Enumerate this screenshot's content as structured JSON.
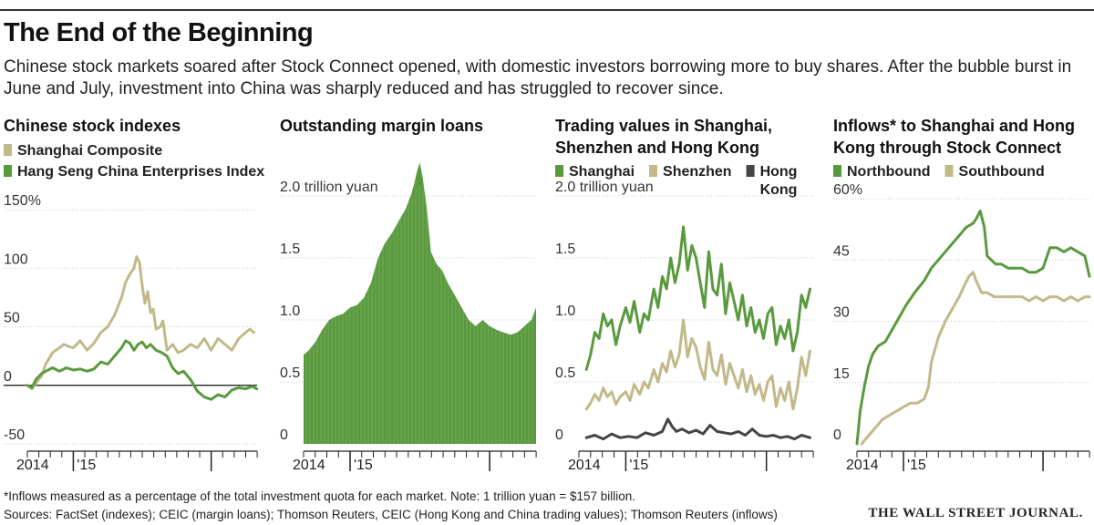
{
  "headline": "The End of the Beginning",
  "dek": "Chinese stock markets soared after Stock Connect opened, with domestic investors borrowing more to buy shares. After the bubble burst in June and July, investment into China was sharply reduced and has struggled to recover since.",
  "footnote": "*Inflows measured as a percentage of the total investment quota for each market. Note: 1 trillion yuan = $157 billion.",
  "sources": "Sources: FactSet (indexes); CEIC (margin loans); Thomson Reuters, CEIC (Hong Kong and China trading values); Thomson Reuters (inflows)",
  "credit": "THE WALL STREET JOURNAL.",
  "colors": {
    "green": "#5a9a3e",
    "tan": "#c2b98a",
    "dark": "#454545",
    "axis": "#222222",
    "grid": "#c8c8c8"
  },
  "chart_data": [
    {
      "id": "indexes",
      "type": "line",
      "title_lines": [
        "Chinese stock indexes"
      ],
      "ylim": [
        -50,
        150
      ],
      "yticks": [
        -50,
        0,
        50,
        100,
        150
      ],
      "ytick_labels": [
        "-50",
        "0",
        "50",
        "100",
        "150%"
      ],
      "xlim": [
        2014.667,
        2016.333
      ],
      "xlabels": [
        {
          "value": 2014.667,
          "label": "2014"
        },
        {
          "value": 2015.0,
          "label": "'15"
        }
      ],
      "zero_line": true,
      "legend_rows": [
        [
          {
            "label": "Shanghai Composite",
            "color": "#c2b98a"
          }
        ],
        [
          {
            "label": "Hang Seng China Enterprises Index",
            "color": "#5a9a3e"
          }
        ]
      ],
      "series": [
        {
          "name": "Shanghai Composite",
          "color": "#c2b98a",
          "x": [
            2014.667,
            2014.7,
            2014.73,
            2014.77,
            2014.8,
            2014.85,
            2014.9,
            2014.93,
            2014.97,
            2015.0,
            2015.05,
            2015.1,
            2015.15,
            2015.2,
            2015.25,
            2015.3,
            2015.35,
            2015.38,
            2015.41,
            2015.44,
            2015.46,
            2015.48,
            2015.5,
            2015.52,
            2015.54,
            2015.56,
            2015.58,
            2015.6,
            2015.63,
            2015.65,
            2015.68,
            2015.72,
            2015.76,
            2015.8,
            2015.85,
            2015.9,
            2015.95,
            2016.0,
            2016.05,
            2016.1,
            2016.15,
            2016.2,
            2016.25,
            2016.28,
            2016.31
          ],
          "values": [
            0,
            -3,
            2,
            8,
            18,
            28,
            32,
            35,
            33,
            32,
            38,
            30,
            36,
            45,
            50,
            60,
            75,
            88,
            95,
            100,
            110,
            105,
            85,
            70,
            80,
            62,
            65,
            48,
            50,
            55,
            30,
            35,
            28,
            30,
            35,
            32,
            40,
            30,
            40,
            35,
            30,
            40,
            45,
            48,
            45
          ]
        },
        {
          "name": "Hang Seng China Enterprises Index",
          "color": "#5a9a3e",
          "x": [
            2014.667,
            2014.7,
            2014.73,
            2014.77,
            2014.8,
            2014.85,
            2014.9,
            2014.95,
            2015.0,
            2015.05,
            2015.1,
            2015.15,
            2015.2,
            2015.25,
            2015.3,
            2015.35,
            2015.38,
            2015.41,
            2015.44,
            2015.47,
            2015.5,
            2015.53,
            2015.56,
            2015.6,
            2015.64,
            2015.68,
            2015.72,
            2015.76,
            2015.8,
            2015.85,
            2015.9,
            2015.95,
            2016.0,
            2016.05,
            2016.1,
            2016.15,
            2016.2,
            2016.25,
            2016.3,
            2016.33
          ],
          "values": [
            0,
            -2,
            5,
            10,
            12,
            15,
            12,
            15,
            13,
            14,
            12,
            14,
            20,
            18,
            25,
            32,
            38,
            36,
            30,
            35,
            37,
            32,
            35,
            30,
            28,
            25,
            15,
            10,
            12,
            5,
            -5,
            -10,
            -12,
            -8,
            -10,
            -4,
            -2,
            -3,
            -1,
            -3
          ]
        }
      ]
    },
    {
      "id": "margin",
      "type": "area",
      "title_lines": [
        "Outstanding margin loans"
      ],
      "ylim": [
        0,
        2.0
      ],
      "yticks": [
        0,
        0.5,
        1.0,
        1.5,
        2.0
      ],
      "ytick_labels": [
        "0",
        "0.5",
        "1.0",
        "1.5",
        "2.0 trillion yuan"
      ],
      "xlim": [
        2014.667,
        2016.333
      ],
      "xlabels": [
        {
          "value": 2014.667,
          "label": "2014"
        },
        {
          "value": 2015.0,
          "label": "'15"
        }
      ],
      "legend_rows": [],
      "series": [
        {
          "name": "Outstanding margin loans",
          "color": "#5a9a3e",
          "x": [
            2014.667,
            2014.7,
            2014.75,
            2014.8,
            2014.85,
            2014.9,
            2014.95,
            2015.0,
            2015.05,
            2015.1,
            2015.15,
            2015.2,
            2015.25,
            2015.3,
            2015.35,
            2015.4,
            2015.44,
            2015.46,
            2015.48,
            2015.5,
            2015.52,
            2015.55,
            2015.58,
            2015.62,
            2015.66,
            2015.7,
            2015.75,
            2015.8,
            2015.85,
            2015.9,
            2015.95,
            2016.0,
            2016.05,
            2016.1,
            2016.15,
            2016.2,
            2016.25,
            2016.3,
            2016.333
          ],
          "values": [
            0.72,
            0.75,
            0.82,
            0.92,
            1.0,
            1.03,
            1.05,
            1.1,
            1.12,
            1.18,
            1.3,
            1.5,
            1.62,
            1.7,
            1.8,
            1.9,
            2.02,
            2.1,
            2.2,
            2.27,
            2.15,
            1.9,
            1.55,
            1.45,
            1.4,
            1.3,
            1.2,
            1.1,
            1.0,
            0.95,
            1.0,
            0.95,
            0.92,
            0.9,
            0.88,
            0.9,
            0.95,
            1.0,
            1.1
          ]
        }
      ]
    },
    {
      "id": "trading",
      "type": "line",
      "title_lines": [
        "Trading values in Shanghai,",
        "Shenzhen and Hong Kong"
      ],
      "ylim": [
        0,
        2.0
      ],
      "yticks": [
        0,
        0.5,
        1.0,
        1.5,
        2.0
      ],
      "ytick_labels": [
        "0",
        "0.5",
        "1.0",
        "1.5",
        "2.0 trillion yuan"
      ],
      "xlim": [
        2014.667,
        2016.333
      ],
      "xlabels": [
        {
          "value": 2014.667,
          "label": "2014"
        },
        {
          "value": 2015.0,
          "label": "'15"
        }
      ],
      "legend_rows": [
        [
          {
            "label": "Shanghai",
            "color": "#5a9a3e"
          },
          {
            "label": "Shenzhen",
            "color": "#c2b98a"
          },
          {
            "label": "Hong",
            "label2": "Kong",
            "color": "#454545"
          }
        ]
      ],
      "series": [
        {
          "name": "Shanghai",
          "color": "#5a9a3e",
          "x": [
            2014.72,
            2014.75,
            2014.78,
            2014.81,
            2014.84,
            2014.87,
            2014.9,
            2014.93,
            2014.96,
            2015.0,
            2015.03,
            2015.06,
            2015.1,
            2015.13,
            2015.16,
            2015.2,
            2015.23,
            2015.26,
            2015.29,
            2015.32,
            2015.35,
            2015.38,
            2015.41,
            2015.44,
            2015.47,
            2015.5,
            2015.53,
            2015.56,
            2015.59,
            2015.62,
            2015.65,
            2015.68,
            2015.71,
            2015.74,
            2015.77,
            2015.8,
            2015.83,
            2015.86,
            2015.89,
            2015.92,
            2015.95,
            2015.98,
            2016.01,
            2016.04,
            2016.07,
            2016.1,
            2016.13,
            2016.16,
            2016.19,
            2016.22,
            2016.25,
            2016.28,
            2016.31
          ],
          "values": [
            0.6,
            0.72,
            0.9,
            0.85,
            1.05,
            0.95,
            1.0,
            0.8,
            0.95,
            1.1,
            0.98,
            1.15,
            0.9,
            1.05,
            1.0,
            1.25,
            1.1,
            1.35,
            1.25,
            1.5,
            1.3,
            1.45,
            1.75,
            1.4,
            1.6,
            1.5,
            1.3,
            1.1,
            1.55,
            1.25,
            1.2,
            1.45,
            1.05,
            1.3,
            1.15,
            1.0,
            1.2,
            0.95,
            1.1,
            0.9,
            1.0,
            0.85,
            1.05,
            1.1,
            0.8,
            0.95,
            0.85,
            1.0,
            0.75,
            0.9,
            1.2,
            1.1,
            1.25
          ]
        },
        {
          "name": "Shenzhen",
          "color": "#c2b98a",
          "x": [
            2014.72,
            2014.75,
            2014.78,
            2014.81,
            2014.84,
            2014.87,
            2014.9,
            2014.93,
            2014.96,
            2015.0,
            2015.03,
            2015.06,
            2015.1,
            2015.13,
            2015.16,
            2015.2,
            2015.23,
            2015.26,
            2015.29,
            2015.32,
            2015.35,
            2015.38,
            2015.41,
            2015.44,
            2015.47,
            2015.5,
            2015.53,
            2015.56,
            2015.59,
            2015.62,
            2015.65,
            2015.68,
            2015.71,
            2015.74,
            2015.77,
            2015.8,
            2015.83,
            2015.86,
            2015.89,
            2015.92,
            2015.95,
            2015.98,
            2016.01,
            2016.04,
            2016.07,
            2016.1,
            2016.13,
            2016.16,
            2016.19,
            2016.22,
            2016.25,
            2016.28,
            2016.31
          ],
          "values": [
            0.28,
            0.33,
            0.4,
            0.35,
            0.45,
            0.38,
            0.42,
            0.32,
            0.38,
            0.42,
            0.35,
            0.48,
            0.4,
            0.5,
            0.45,
            0.6,
            0.5,
            0.65,
            0.58,
            0.75,
            0.62,
            0.72,
            1.0,
            0.7,
            0.85,
            0.78,
            0.62,
            0.52,
            0.82,
            0.6,
            0.55,
            0.72,
            0.48,
            0.65,
            0.55,
            0.45,
            0.6,
            0.42,
            0.55,
            0.4,
            0.48,
            0.35,
            0.5,
            0.55,
            0.3,
            0.45,
            0.35,
            0.5,
            0.28,
            0.45,
            0.7,
            0.55,
            0.75
          ]
        },
        {
          "name": "Hong Kong",
          "color": "#454545",
          "x": [
            2014.72,
            2014.78,
            2014.84,
            2014.9,
            2014.96,
            2015.02,
            2015.08,
            2015.14,
            2015.2,
            2015.26,
            2015.3,
            2015.33,
            2015.36,
            2015.4,
            2015.45,
            2015.5,
            2015.55,
            2015.6,
            2015.65,
            2015.7,
            2015.75,
            2015.8,
            2015.85,
            2015.9,
            2015.95,
            2016.0,
            2016.05,
            2016.1,
            2016.15,
            2016.2,
            2016.25,
            2016.31
          ],
          "values": [
            0.05,
            0.07,
            0.04,
            0.08,
            0.05,
            0.06,
            0.05,
            0.09,
            0.07,
            0.1,
            0.2,
            0.14,
            0.1,
            0.12,
            0.09,
            0.11,
            0.08,
            0.15,
            0.1,
            0.09,
            0.08,
            0.1,
            0.07,
            0.12,
            0.07,
            0.06,
            0.07,
            0.05,
            0.06,
            0.04,
            0.07,
            0.05
          ]
        }
      ]
    },
    {
      "id": "inflows",
      "type": "line",
      "title_lines": [
        "Inflows* to Shanghai and Hong",
        "Kong through Stock Connect"
      ],
      "ylim": [
        0,
        60
      ],
      "yticks": [
        0,
        15,
        30,
        45,
        60
      ],
      "ytick_labels": [
        "0",
        "15",
        "30",
        "45",
        "60%"
      ],
      "xlim": [
        2014.667,
        2016.333
      ],
      "xlabels": [
        {
          "value": 2014.667,
          "label": "2014"
        },
        {
          "value": 2015.0,
          "label": "'15"
        }
      ],
      "legend_rows": [
        [
          {
            "label": "Northbound",
            "color": "#5a9a3e"
          },
          {
            "label": "Southbound",
            "color": "#c2b98a"
          }
        ]
      ],
      "series": [
        {
          "name": "Northbound",
          "color": "#5a9a3e",
          "x": [
            2014.667,
            2014.69,
            2014.72,
            2014.75,
            2014.78,
            2014.82,
            2014.87,
            2014.92,
            2014.97,
            2015.02,
            2015.08,
            2015.15,
            2015.2,
            2015.25,
            2015.3,
            2015.35,
            2015.4,
            2015.45,
            2015.5,
            2015.52,
            2015.55,
            2015.58,
            2015.6,
            2015.63,
            2015.66,
            2015.7,
            2015.75,
            2015.8,
            2015.85,
            2015.9,
            2015.95,
            2016.0,
            2016.05,
            2016.1,
            2016.15,
            2016.2,
            2016.25,
            2016.3,
            2016.333
          ],
          "values": [
            0,
            8,
            14,
            19,
            22,
            24,
            25,
            28,
            31,
            34,
            37,
            40,
            43,
            45,
            47,
            49,
            51,
            53,
            54,
            55,
            57,
            53,
            46,
            45,
            44,
            44,
            43,
            43,
            43,
            42,
            42,
            43,
            48,
            48,
            47,
            48,
            47,
            46,
            41
          ]
        },
        {
          "name": "Southbound",
          "color": "#c2b98a",
          "x": [
            2014.7,
            2014.75,
            2014.8,
            2014.85,
            2014.9,
            2014.95,
            2015.0,
            2015.05,
            2015.1,
            2015.15,
            2015.18,
            2015.2,
            2015.25,
            2015.3,
            2015.35,
            2015.4,
            2015.44,
            2015.47,
            2015.5,
            2015.52,
            2015.56,
            2015.6,
            2015.65,
            2015.7,
            2015.75,
            2015.8,
            2015.85,
            2015.9,
            2015.95,
            2016.0,
            2016.05,
            2016.1,
            2016.15,
            2016.2,
            2016.25,
            2016.3,
            2016.333
          ],
          "values": [
            0,
            2,
            4,
            6,
            7,
            8,
            9,
            10,
            10,
            11,
            14,
            20,
            26,
            30,
            33,
            36,
            39,
            41,
            42,
            40,
            37,
            37,
            36,
            36,
            36,
            36,
            36,
            35,
            36,
            35,
            36,
            36,
            35,
            36,
            35,
            36,
            36
          ]
        }
      ]
    }
  ]
}
